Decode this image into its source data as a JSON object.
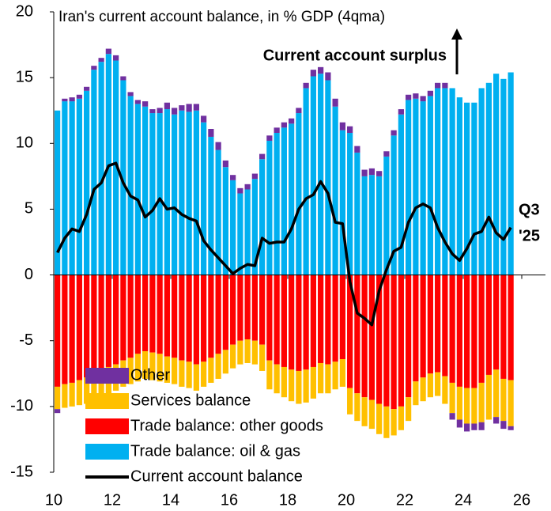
{
  "chart_data": {
    "type": "bar",
    "title": "Iran's current account balance, in % GDP (4qma)",
    "annotation": "Current account surplus",
    "end_label": [
      "Q3",
      "'25"
    ],
    "x": [
      10,
      10.25,
      10.5,
      10.75,
      11,
      11.25,
      11.5,
      11.75,
      12,
      12.25,
      12.5,
      12.75,
      13,
      13.25,
      13.5,
      13.75,
      14,
      14.25,
      14.5,
      14.75,
      15,
      15.25,
      15.5,
      15.75,
      16,
      16.25,
      16.5,
      16.75,
      17,
      17.25,
      17.5,
      17.75,
      18,
      18.25,
      18.5,
      18.75,
      19,
      19.25,
      19.5,
      19.75,
      20,
      20.25,
      20.5,
      20.75,
      21,
      21.25,
      21.5,
      21.75,
      22,
      22.25,
      22.5,
      22.75,
      23,
      23.25,
      23.5,
      23.75,
      24,
      24.25,
      24.5,
      24.75,
      25,
      25.25,
      25.5
    ],
    "xlim": [
      10,
      26
    ],
    "xticks": [
      10,
      12,
      14,
      16,
      18,
      20,
      22,
      24,
      26
    ],
    "ylim": [
      -15,
      20
    ],
    "yticks": [
      -15,
      -10,
      -5,
      0,
      5,
      10,
      15,
      20
    ],
    "legend": "lower left",
    "series": [
      {
        "name": "Other",
        "color": "#7030a0",
        "values": [
          -0.3,
          0.2,
          0.3,
          0.3,
          0.3,
          0.3,
          0.3,
          0.4,
          0.4,
          0.3,
          0.3,
          0.3,
          0.4,
          0.3,
          0.4,
          0.5,
          0.5,
          0.4,
          0.6,
          0.5,
          0.5,
          0.6,
          0.6,
          0.5,
          0.4,
          0.4,
          0.4,
          0.4,
          0.4,
          0.4,
          0.4,
          0.4,
          0.4,
          0.4,
          0.4,
          0.5,
          0.5,
          0.6,
          0.6,
          0.6,
          0.5,
          0.5,
          0.5,
          0.5,
          0.4,
          0.4,
          0.4,
          0.4,
          0.4,
          0.4,
          0.4,
          0.4,
          0.4,
          0.4,
          -0.5,
          -0.6,
          -0.6,
          -0.5,
          -0.6,
          0.0,
          -0.5,
          -0.6,
          -0.3
        ]
      },
      {
        "name": "Services balance",
        "color": "#ffc000",
        "values": [
          -1.7,
          -1.8,
          -1.8,
          -1.9,
          -2.0,
          -2.0,
          -2.0,
          -2.0,
          -2.0,
          -2.0,
          -2.0,
          -2.1,
          -2.1,
          -2.1,
          -2.1,
          -2.0,
          -2.0,
          -2.0,
          -2.0,
          -2.0,
          -1.9,
          -1.9,
          -1.9,
          -1.8,
          -1.8,
          -1.8,
          -1.8,
          -1.8,
          -2.0,
          -2.2,
          -2.2,
          -2.3,
          -2.4,
          -2.5,
          -2.5,
          -2.4,
          -2.3,
          -2.2,
          -2.1,
          -2.1,
          -2.0,
          -2.1,
          -2.2,
          -2.2,
          -2.3,
          -2.4,
          -2.0,
          -1.8,
          -1.8,
          -1.8,
          -1.8,
          -1.8,
          -1.8,
          -2.1,
          -2.3,
          -2.5,
          -2.7,
          -2.7,
          -3.0,
          -3.4,
          -3.6,
          -3.2,
          -3.5
        ]
      },
      {
        "name": "Trade balance: other goods",
        "color": "#ff0000",
        "values": [
          -8.5,
          -8.3,
          -8.2,
          -8.0,
          -7.8,
          -7.5,
          -7.2,
          -7.0,
          -6.8,
          -6.5,
          -6.3,
          -6.0,
          -5.8,
          -5.9,
          -6.0,
          -6.2,
          -6.3,
          -6.5,
          -6.6,
          -6.8,
          -6.6,
          -6.3,
          -6.0,
          -5.7,
          -5.3,
          -5.0,
          -4.9,
          -5.0,
          -5.3,
          -6.5,
          -6.8,
          -7.0,
          -7.2,
          -7.3,
          -7.2,
          -7.0,
          -6.7,
          -6.8,
          -6.6,
          -6.4,
          -8.6,
          -9.0,
          -9.3,
          -9.5,
          -9.8,
          -10.0,
          -10.2,
          -10.0,
          -9.3,
          -8.1,
          -7.8,
          -7.5,
          -7.4,
          -7.7,
          -8.2,
          -8.5,
          -8.6,
          -8.6,
          -8.2,
          -7.6,
          -7.2,
          -7.9,
          -8.0
        ]
      },
      {
        "name": "Trade balance: oil & gas",
        "color": "#00b0f0",
        "values": [
          12.5,
          13.2,
          13.2,
          13.4,
          14.0,
          15.6,
          16.2,
          16.8,
          16.3,
          14.8,
          13.6,
          13.0,
          12.8,
          12.3,
          12.3,
          12.6,
          12.2,
          12.5,
          12.4,
          12.5,
          11.6,
          10.5,
          9.5,
          8.2,
          7.2,
          6.2,
          6.5,
          7.3,
          8.8,
          10.2,
          10.8,
          11.2,
          11.5,
          12.3,
          14.2,
          15.1,
          15.3,
          14.8,
          12.8,
          11.0,
          10.8,
          9.3,
          7.5,
          7.6,
          7.5,
          9.0,
          10.6,
          12.2,
          13.3,
          13.4,
          13.2,
          13.6,
          14.2,
          14.2,
          14.2,
          13.5,
          13.1,
          13.1,
          14.2,
          14.6,
          15.3,
          14.9,
          15.4
        ]
      },
      {
        "name": "Current account balance",
        "color": "#000000",
        "type": "line",
        "values": [
          1.7,
          2.8,
          3.5,
          3.3,
          4.6,
          6.5,
          7.0,
          8.3,
          8.5,
          7.0,
          6.0,
          5.7,
          4.4,
          4.9,
          5.8,
          5.0,
          5.1,
          4.6,
          4.3,
          4.1,
          2.6,
          1.9,
          1.3,
          0.7,
          0.1,
          0.5,
          0.8,
          0.7,
          2.8,
          2.4,
          2.5,
          2.5,
          3.5,
          5.0,
          5.8,
          6.1,
          7.1,
          6.2,
          4.0,
          3.9,
          -0.5,
          -2.9,
          -3.3,
          -3.8,
          -1.2,
          0.4,
          1.8,
          2.1,
          4.0,
          5.1,
          5.4,
          5.1,
          3.6,
          2.5,
          1.6,
          1.1,
          2.0,
          3.1,
          3.3,
          4.4,
          3.2,
          2.7,
          3.6
        ]
      }
    ]
  }
}
